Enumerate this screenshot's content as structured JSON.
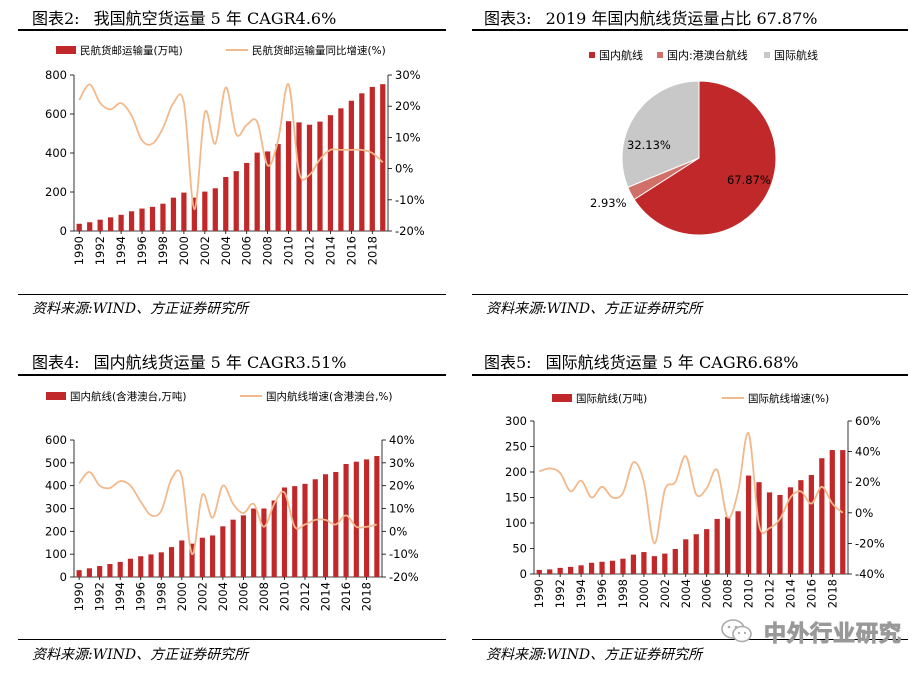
{
  "panels": {
    "p2": {
      "label": "图表2:",
      "title": "我国航空货运量 5 年 CAGR4.6%",
      "source": "资料来源:WIND、方正证券研究所"
    },
    "p3": {
      "label": "图表3:",
      "title": "2019 年国内航线货运量占比 67.87%",
      "source": "资料来源:WIND、方正证券研究所"
    },
    "p4": {
      "label": "图表4:",
      "title": "国内航线货运量 5 年 CAGR3.51%",
      "source": "资料来源:WIND、方正证券研究所"
    },
    "p5": {
      "label": "图表5:",
      "title": "国际航线货运量 5 年 CAGR6.68%",
      "source": "资料来源:WIND、方正证券研究所"
    }
  },
  "watermark": "中外行业研究",
  "colors": {
    "bar": "#C0282A",
    "line": "#F2B98C",
    "pie_domestic": "#C0282A",
    "pie_hkmo": "#D07068",
    "pie_intl": "#C8C8C8"
  },
  "chart_data": [
    {
      "id": "chart2",
      "type": "bar+line",
      "title": "我国航空货运量 5 年 CAGR4.6%",
      "legend": [
        "民航货邮运输量(万吨)",
        "民航货邮运输量同比增速(%)"
      ],
      "categories": [
        "1990",
        "1991",
        "1992",
        "1993",
        "1994",
        "1995",
        "1996",
        "1997",
        "1998",
        "1999",
        "2000",
        "2001",
        "2002",
        "2003",
        "2004",
        "2005",
        "2006",
        "2007",
        "2008",
        "2009",
        "2010",
        "2011",
        "2012",
        "2013",
        "2014",
        "2015",
        "2016",
        "2017",
        "2018",
        "2019"
      ],
      "xtick_labels": [
        "1990",
        "1992",
        "1994",
        "1996",
        "1998",
        "2000",
        "2002",
        "2004",
        "2006",
        "2008",
        "2010",
        "2012",
        "2014",
        "2016",
        "2018"
      ],
      "bars": [
        37,
        45,
        58,
        70,
        83,
        101,
        115,
        124,
        140,
        171,
        197,
        171,
        202,
        219,
        277,
        307,
        349,
        402,
        408,
        446,
        563,
        557,
        545,
        561,
        594,
        629,
        668,
        706,
        739,
        753
      ],
      "line": [
        22,
        27,
        21,
        19,
        21,
        17,
        9,
        8,
        13,
        21,
        21,
        -13,
        18,
        8,
        26,
        11,
        14,
        15,
        1,
        9,
        27,
        -1,
        -2,
        3,
        6,
        6,
        6,
        6,
        5,
        2
      ],
      "ylim_left": [
        0,
        800
      ],
      "yticks_left": [
        "0",
        "200",
        "400",
        "600",
        "800"
      ],
      "ylim_right": [
        -20,
        30
      ],
      "yticks_right": [
        "-20%",
        "-10%",
        "0%",
        "10%",
        "20%",
        "30%"
      ]
    },
    {
      "id": "chart3",
      "type": "pie",
      "title": "2019 年国内航线货运量占比 67.87%",
      "legend": [
        "国内航线",
        "国内:港澳台航线",
        "国际航线"
      ],
      "values": [
        67.87,
        2.93,
        32.13
      ],
      "labels": [
        "67.87%",
        "2.93%",
        "32.13%"
      ]
    },
    {
      "id": "chart4",
      "type": "bar+line",
      "title": "国内航线货运量 5 年 CAGR3.51%",
      "legend": [
        "国内航线(含港澳台,万吨)",
        "国内航线增速(含港澳台,%)"
      ],
      "categories": [
        "1990",
        "1991",
        "1992",
        "1993",
        "1994",
        "1995",
        "1996",
        "1997",
        "1998",
        "1999",
        "2000",
        "2001",
        "2002",
        "2003",
        "2004",
        "2005",
        "2006",
        "2007",
        "2008",
        "2009",
        "2010",
        "2011",
        "2012",
        "2013",
        "2014",
        "2015",
        "2016",
        "2017",
        "2018",
        "2019"
      ],
      "xtick_labels": [
        "1990",
        "1992",
        "1994",
        "1996",
        "1998",
        "2000",
        "2002",
        "2004",
        "2006",
        "2008",
        "2010",
        "2012",
        "2014",
        "2016",
        "2018"
      ],
      "bars": [
        30,
        38,
        48,
        57,
        66,
        80,
        91,
        99,
        108,
        131,
        160,
        146,
        172,
        182,
        222,
        251,
        270,
        300,
        300,
        335,
        392,
        398,
        408,
        428,
        450,
        460,
        495,
        505,
        515,
        530
      ],
      "line": [
        21,
        26,
        20,
        19,
        22,
        20,
        13,
        7,
        9,
        23,
        24,
        -10,
        16,
        6,
        20,
        12,
        8,
        12,
        2,
        12,
        17,
        2,
        3,
        5,
        5,
        3,
        7,
        2,
        2,
        3
      ],
      "ylim_left": [
        0,
        600
      ],
      "yticks_left": [
        "0",
        "100",
        "200",
        "300",
        "400",
        "500",
        "600"
      ],
      "ylim_right": [
        -20,
        40
      ],
      "yticks_right": [
        "-20%",
        "-10%",
        "0%",
        "10%",
        "20%",
        "30%",
        "40%"
      ]
    },
    {
      "id": "chart5",
      "type": "bar+line",
      "title": "国际航线货运量 5 年 CAGR6.68%",
      "legend": [
        "国际航线(万吨)",
        "国际航线增速(%)"
      ],
      "categories": [
        "1990",
        "1991",
        "1992",
        "1993",
        "1994",
        "1995",
        "1996",
        "1997",
        "1998",
        "1999",
        "2000",
        "2001",
        "2002",
        "2003",
        "2004",
        "2005",
        "2006",
        "2007",
        "2008",
        "2009",
        "2010",
        "2011",
        "2012",
        "2013",
        "2014",
        "2015",
        "2016",
        "2017",
        "2018",
        "2019"
      ],
      "xtick_labels": [
        "1990",
        "1992",
        "1994",
        "1996",
        "1998",
        "2000",
        "2002",
        "2004",
        "2006",
        "2008",
        "2010",
        "2012",
        "2014",
        "2016",
        "2018"
      ],
      "bars": [
        8,
        9,
        12,
        14,
        17,
        22,
        24,
        26,
        30,
        38,
        43,
        35,
        40,
        49,
        68,
        78,
        88,
        108,
        112,
        123,
        193,
        180,
        160,
        155,
        170,
        184,
        194,
        227,
        243,
        243
      ],
      "line": [
        27,
        29,
        26,
        14,
        21,
        10,
        17,
        10,
        13,
        33,
        20,
        -20,
        15,
        20,
        37,
        12,
        16,
        28,
        -3,
        14,
        52,
        -8,
        -10,
        -4,
        10,
        14,
        6,
        17,
        6,
        0
      ],
      "ylim_left": [
        0,
        300
      ],
      "yticks_left": [
        "0",
        "50",
        "100",
        "150",
        "200",
        "250",
        "300"
      ],
      "ylim_right": [
        -40,
        60
      ],
      "yticks_right": [
        "-40%",
        "-20%",
        "0%",
        "20%",
        "40%",
        "60%"
      ]
    }
  ]
}
